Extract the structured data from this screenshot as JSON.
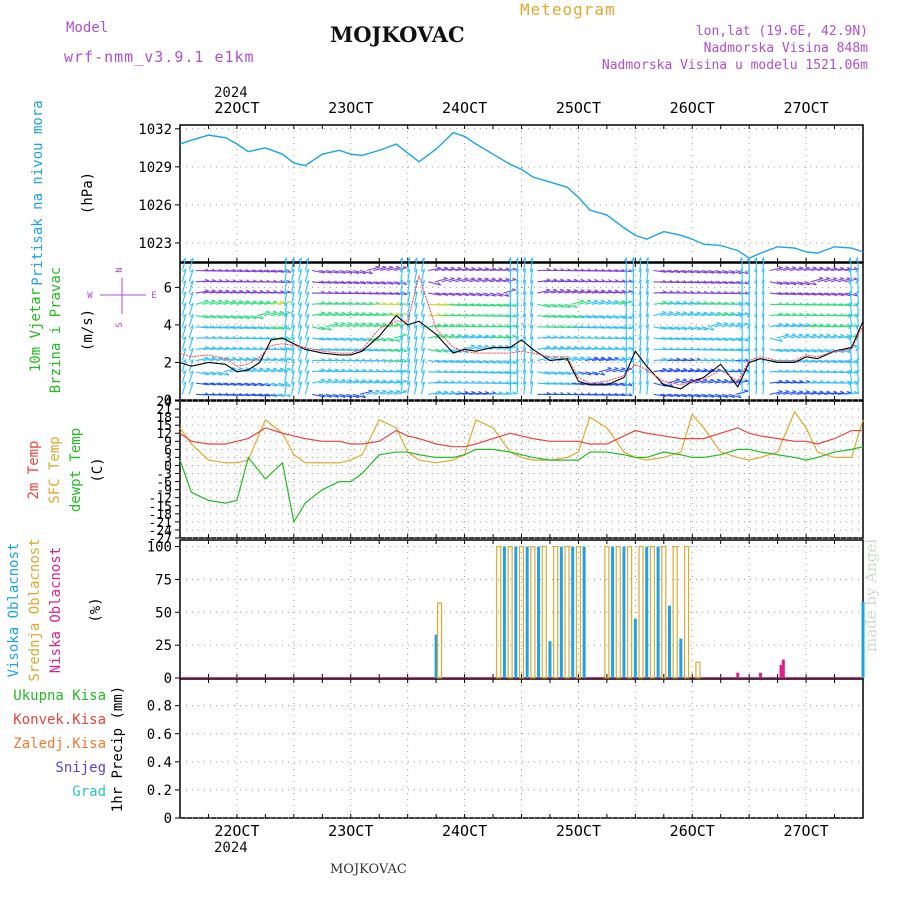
{
  "header": {
    "model_label": "Model",
    "model_name": "wrf-nmm_v3.9.1  e1km",
    "station": "MOJKOVAC",
    "product": "Meteogram",
    "lonlat": "lon,lat (19.6E, 42.9N)",
    "elevation": "Nadmorska Visina 848m",
    "model_elevation": "Nadmorska Visina u modelu 1521.06m",
    "year_top": "2024",
    "year_bottom": "2024",
    "footer_station": "MOJKOVAC",
    "watermark": "made by Angel"
  },
  "colors": {
    "pressure": "#1ca3e6",
    "temp2m": "#e8453c",
    "sfc": "#e0a82e",
    "dewpt": "#22bb22",
    "wind_mag": "#000000",
    "gust": "#ff4040",
    "cloud_high": "#1ca3e6",
    "cloud_mid": "#e0a82e",
    "cloud_low": "#e0208a",
    "label_purple": "#b04fd0",
    "snow": "#5a3fd9",
    "grad": "#2ec4c4",
    "conv": "#e8453c",
    "frz": "#f07a2e",
    "total": "#22bb22"
  },
  "chart_data": [
    {
      "type": "line",
      "name": "pressure",
      "ylabel": [
        "Pritisak na nivou mora",
        "(hPa)"
      ],
      "ylim": [
        1021.5,
        1032.3
      ],
      "yticks": [
        1023,
        1026,
        1029,
        1032
      ],
      "x_day_ticks": [
        "22OCT",
        "23OCT",
        "24OCT",
        "25OCT",
        "26OCT",
        "27OCT"
      ],
      "x": [
        21.5,
        21.6,
        21.75,
        21.9,
        22.0,
        22.1,
        22.25,
        22.4,
        22.5,
        22.6,
        22.75,
        22.9,
        23.0,
        23.1,
        23.25,
        23.4,
        23.5,
        23.6,
        23.75,
        23.9,
        24.0,
        24.1,
        24.25,
        24.4,
        24.5,
        24.6,
        24.75,
        24.9,
        25.0,
        25.1,
        25.25,
        25.4,
        25.5,
        25.6,
        25.75,
        25.9,
        26.0,
        26.1,
        26.25,
        26.4,
        26.5,
        26.6,
        26.75,
        26.9,
        27.0,
        27.1,
        27.25,
        27.4,
        27.5
      ],
      "y": [
        1030.8,
        1031.1,
        1031.5,
        1031.3,
        1030.8,
        1030.2,
        1030.5,
        1030.0,
        1029.3,
        1029.1,
        1030.0,
        1030.3,
        1030.0,
        1029.9,
        1030.3,
        1030.8,
        1030.1,
        1029.4,
        1030.4,
        1031.7,
        1031.4,
        1030.8,
        1030.0,
        1029.2,
        1028.8,
        1028.2,
        1027.8,
        1027.4,
        1026.6,
        1025.6,
        1025.2,
        1024.2,
        1023.6,
        1023.3,
        1023.9,
        1023.6,
        1023.3,
        1022.9,
        1022.8,
        1022.4,
        1021.8,
        1022.2,
        1022.7,
        1022.6,
        1022.3,
        1022.2,
        1022.7,
        1022.6,
        1022.3
      ]
    },
    {
      "type": "line",
      "name": "wind",
      "ylabel": [
        "10m Vjetar",
        "Brzina i Pravac",
        "(m/s)"
      ],
      "compass": {
        "n": "N",
        "s": "S",
        "e": "E",
        "w": "W"
      },
      "ylim": [
        0,
        7.3
      ],
      "yticks": [
        0,
        2,
        4,
        6
      ],
      "x": [
        21.5,
        21.6,
        21.75,
        21.9,
        22.0,
        22.1,
        22.2,
        22.3,
        22.4,
        22.5,
        22.6,
        22.75,
        22.9,
        23.0,
        23.1,
        23.25,
        23.4,
        23.5,
        23.6,
        23.75,
        23.9,
        24.0,
        24.1,
        24.25,
        24.4,
        24.5,
        24.6,
        24.75,
        24.9,
        25.0,
        25.1,
        25.25,
        25.4,
        25.5,
        25.6,
        25.75,
        25.9,
        26.0,
        26.1,
        26.25,
        26.4,
        26.5,
        26.6,
        26.75,
        26.9,
        27.0,
        27.1,
        27.25,
        27.4,
        27.5
      ],
      "y": [
        2.0,
        1.8,
        2.0,
        1.9,
        1.5,
        1.6,
        2.0,
        3.2,
        3.3,
        3.0,
        2.7,
        2.5,
        2.4,
        2.4,
        2.6,
        3.4,
        4.5,
        4.0,
        4.2,
        3.5,
        2.5,
        2.7,
        2.6,
        2.8,
        2.8,
        3.2,
        2.7,
        2.1,
        2.2,
        1.0,
        0.8,
        0.8,
        1.2,
        2.6,
        1.8,
        0.8,
        0.6,
        1.0,
        1.2,
        1.9,
        0.7,
        2.0,
        2.2,
        2.0,
        2.0,
        2.3,
        2.2,
        2.6,
        2.8,
        4.2
      ],
      "gust_y": [
        2.5,
        2.3,
        2.4,
        2.2,
        1.8,
        1.9,
        2.3,
        2.9,
        3.0,
        2.9,
        2.8,
        2.6,
        2.5,
        2.5,
        2.7,
        3.8,
        4.2,
        4.2,
        6.6,
        3.8,
        2.8,
        2.6,
        2.5,
        2.5,
        2.5,
        2.6,
        2.5,
        2.3,
        2.3,
        1.2,
        0.9,
        1.0,
        1.3,
        1.9,
        1.6,
        1.0,
        0.8,
        1.0,
        1.1,
        1.6,
        1.0,
        2.1,
        2.3,
        2.1,
        2.1,
        2.4,
        2.3,
        2.6,
        2.7,
        4.0
      ]
    },
    {
      "type": "line",
      "name": "temperature",
      "ylabel": [
        "2m Temp",
        "SFC Temp",
        "dewpt Temp",
        "(C)"
      ],
      "ylim": [
        -27,
        24
      ],
      "yticks": [
        -27,
        -24,
        -21,
        -18,
        -15,
        -12,
        -9,
        -6,
        -3,
        0,
        3,
        6,
        9,
        12,
        15,
        18,
        21,
        24
      ],
      "x": [
        21.5,
        21.6,
        21.75,
        21.9,
        22.0,
        22.1,
        22.25,
        22.4,
        22.5,
        22.6,
        22.75,
        22.9,
        23.0,
        23.1,
        23.25,
        23.4,
        23.5,
        23.6,
        23.75,
        23.9,
        24.0,
        24.1,
        24.25,
        24.4,
        24.5,
        24.6,
        24.75,
        24.9,
        25.0,
        25.1,
        25.25,
        25.4,
        25.5,
        25.6,
        25.75,
        25.9,
        26.0,
        26.1,
        26.25,
        26.4,
        26.5,
        26.6,
        26.75,
        26.9,
        27.0,
        27.1,
        27.25,
        27.4,
        27.5
      ],
      "t2m": [
        12,
        9,
        8,
        8,
        9,
        10,
        14,
        12,
        11,
        10,
        9,
        9,
        8,
        8,
        9,
        13,
        11,
        10,
        8,
        7,
        7,
        8,
        10,
        12,
        11,
        10,
        9,
        9,
        9,
        8,
        8,
        11,
        13,
        12,
        11,
        10,
        10,
        10,
        12,
        14,
        12,
        11,
        10,
        9,
        9,
        8,
        10,
        13,
        13
      ],
      "sfc": [
        14,
        8,
        2,
        1,
        1,
        2,
        17,
        12,
        4,
        1,
        1,
        1,
        2,
        4,
        17,
        14,
        5,
        2,
        1,
        2,
        4,
        17,
        14,
        5,
        3,
        2,
        2,
        3,
        5,
        18,
        14,
        5,
        3,
        2,
        3,
        5,
        19,
        14,
        5,
        3,
        2,
        3,
        5,
        20,
        14,
        5,
        3,
        3,
        17
      ],
      "dewpt": [
        2,
        -10,
        -13,
        -14,
        -13,
        3,
        -5,
        1,
        -21,
        -14,
        -9,
        -6,
        -6,
        -3,
        4,
        5,
        5,
        4,
        3,
        3,
        4,
        6,
        6,
        5,
        4,
        3,
        2,
        2,
        2,
        5,
        5,
        4,
        3,
        3,
        5,
        4,
        3,
        3,
        4,
        6,
        6,
        5,
        4,
        3,
        2,
        3,
        5,
        6,
        7
      ]
    },
    {
      "type": "bar",
      "name": "cloud_cover",
      "ylabel": [
        "Visoka Oblacnost",
        "Srednja Oblacnost",
        "Niska Oblacnost",
        "(%)"
      ],
      "ylim": [
        0,
        105
      ],
      "yticks": [
        0,
        25,
        50,
        75,
        100
      ],
      "series": [
        {
          "name": "Visoka Oblacnost",
          "x": [
            23.75,
            24.35,
            24.45,
            24.55,
            24.65,
            24.75,
            24.85,
            24.95,
            25.05,
            25.3,
            25.4,
            25.5,
            25.6,
            25.7,
            25.8,
            25.9,
            27.5
          ],
          "values": [
            33,
            100,
            100,
            100,
            100,
            28,
            100,
            100,
            100,
            100,
            100,
            45,
            100,
            100,
            55,
            30,
            58
          ]
        },
        {
          "name": "Srednja Oblacnost",
          "x": [
            23.78,
            24.3,
            24.4,
            24.5,
            24.6,
            24.7,
            24.8,
            24.9,
            25.0,
            25.25,
            25.35,
            25.45,
            25.55,
            25.65,
            25.75,
            25.85,
            25.95,
            26.05
          ],
          "values": [
            57,
            100,
            100,
            100,
            100,
            100,
            100,
            100,
            100,
            100,
            100,
            100,
            100,
            100,
            100,
            100,
            100,
            12
          ]
        },
        {
          "name": "Niska Oblacnost",
          "x": [
            26.4,
            26.6,
            26.78,
            26.8
          ],
          "values": [
            4,
            4,
            10,
            14
          ]
        }
      ]
    },
    {
      "type": "bar",
      "name": "precipitation",
      "ylabel": [
        "1hr Precip (mm)"
      ],
      "legend": [
        "Ukupna Kisa",
        "Konvek.Kisa",
        "Zaledj.Kisa",
        "Snijeg",
        "Grad"
      ],
      "ylim": [
        0,
        0.99
      ],
      "yticks": [
        0,
        0.2,
        0.4,
        0.6,
        0.8
      ],
      "values": []
    }
  ]
}
